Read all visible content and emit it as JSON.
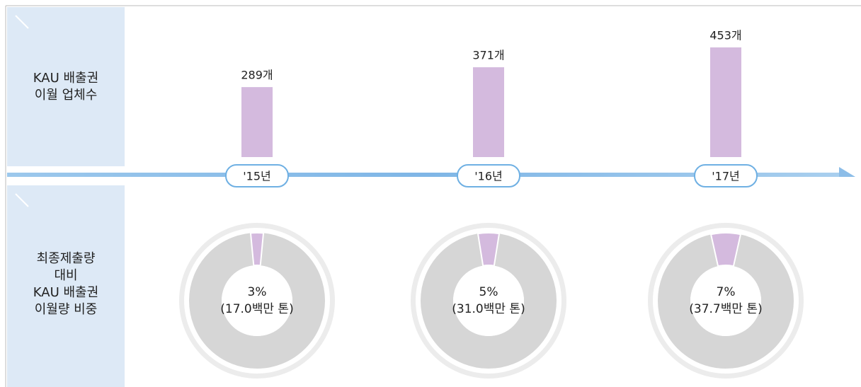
{
  "row_labels": [
    [
      "KAU 배출권",
      "이월 업체수"
    ],
    [
      "최종제출량",
      "대비",
      "KAU 배출권",
      "이월량 비중"
    ]
  ],
  "chart_data": [
    {
      "type": "bar",
      "categories": [
        "'15년",
        "'16년",
        "'17년"
      ],
      "values": [
        289,
        371,
        453
      ],
      "value_labels": [
        "289개",
        "371개",
        "453개"
      ],
      "color": "#d4bade"
    },
    {
      "type": "donut",
      "categories": [
        "'15년",
        "'16년",
        "'17년"
      ],
      "values": [
        3,
        5,
        7
      ],
      "value_labels": [
        "3%",
        "5%",
        "7%"
      ],
      "notes": [
        "(17.0백만 톤)",
        "(31.0백만 톤)",
        "(37.7백만 톤)"
      ],
      "color": "#d4bade"
    }
  ]
}
